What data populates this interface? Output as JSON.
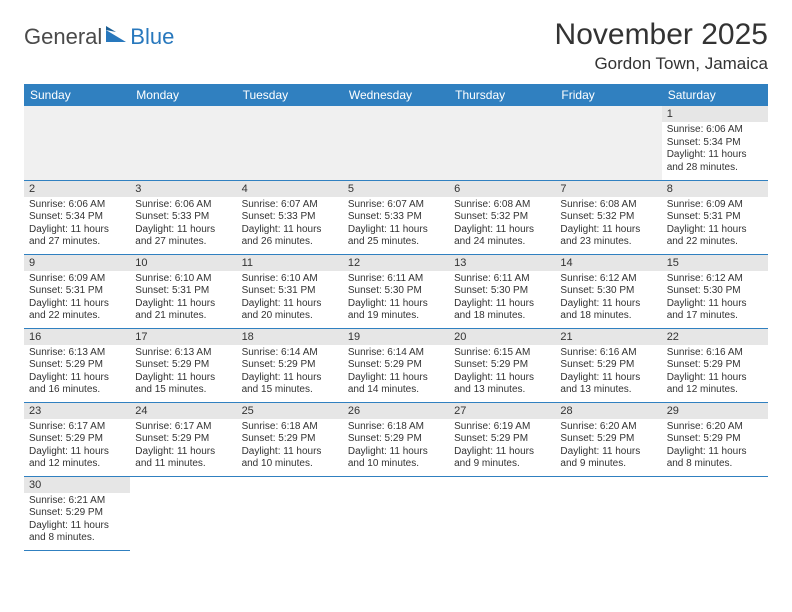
{
  "logo": {
    "main": "General",
    "sub": "Blue"
  },
  "title": "November 2025",
  "location": "Gordon Town, Jamaica",
  "colors": {
    "header_bg": "#3080c0",
    "header_text": "#ffffff",
    "daynum_bg": "#e6e6e6",
    "border": "#3080c0",
    "logo_gray": "#4a4a4a",
    "logo_blue": "#2878bd"
  },
  "weekdays": [
    "Sunday",
    "Monday",
    "Tuesday",
    "Wednesday",
    "Thursday",
    "Friday",
    "Saturday"
  ],
  "first_weekday_index": 6,
  "days": [
    {
      "n": 1,
      "sunrise": "6:06 AM",
      "sunset": "5:34 PM",
      "daylight": "11 hours and 28 minutes."
    },
    {
      "n": 2,
      "sunrise": "6:06 AM",
      "sunset": "5:34 PM",
      "daylight": "11 hours and 27 minutes."
    },
    {
      "n": 3,
      "sunrise": "6:06 AM",
      "sunset": "5:33 PM",
      "daylight": "11 hours and 27 minutes."
    },
    {
      "n": 4,
      "sunrise": "6:07 AM",
      "sunset": "5:33 PM",
      "daylight": "11 hours and 26 minutes."
    },
    {
      "n": 5,
      "sunrise": "6:07 AM",
      "sunset": "5:33 PM",
      "daylight": "11 hours and 25 minutes."
    },
    {
      "n": 6,
      "sunrise": "6:08 AM",
      "sunset": "5:32 PM",
      "daylight": "11 hours and 24 minutes."
    },
    {
      "n": 7,
      "sunrise": "6:08 AM",
      "sunset": "5:32 PM",
      "daylight": "11 hours and 23 minutes."
    },
    {
      "n": 8,
      "sunrise": "6:09 AM",
      "sunset": "5:31 PM",
      "daylight": "11 hours and 22 minutes."
    },
    {
      "n": 9,
      "sunrise": "6:09 AM",
      "sunset": "5:31 PM",
      "daylight": "11 hours and 22 minutes."
    },
    {
      "n": 10,
      "sunrise": "6:10 AM",
      "sunset": "5:31 PM",
      "daylight": "11 hours and 21 minutes."
    },
    {
      "n": 11,
      "sunrise": "6:10 AM",
      "sunset": "5:31 PM",
      "daylight": "11 hours and 20 minutes."
    },
    {
      "n": 12,
      "sunrise": "6:11 AM",
      "sunset": "5:30 PM",
      "daylight": "11 hours and 19 minutes."
    },
    {
      "n": 13,
      "sunrise": "6:11 AM",
      "sunset": "5:30 PM",
      "daylight": "11 hours and 18 minutes."
    },
    {
      "n": 14,
      "sunrise": "6:12 AM",
      "sunset": "5:30 PM",
      "daylight": "11 hours and 18 minutes."
    },
    {
      "n": 15,
      "sunrise": "6:12 AM",
      "sunset": "5:30 PM",
      "daylight": "11 hours and 17 minutes."
    },
    {
      "n": 16,
      "sunrise": "6:13 AM",
      "sunset": "5:29 PM",
      "daylight": "11 hours and 16 minutes."
    },
    {
      "n": 17,
      "sunrise": "6:13 AM",
      "sunset": "5:29 PM",
      "daylight": "11 hours and 15 minutes."
    },
    {
      "n": 18,
      "sunrise": "6:14 AM",
      "sunset": "5:29 PM",
      "daylight": "11 hours and 15 minutes."
    },
    {
      "n": 19,
      "sunrise": "6:14 AM",
      "sunset": "5:29 PM",
      "daylight": "11 hours and 14 minutes."
    },
    {
      "n": 20,
      "sunrise": "6:15 AM",
      "sunset": "5:29 PM",
      "daylight": "11 hours and 13 minutes."
    },
    {
      "n": 21,
      "sunrise": "6:16 AM",
      "sunset": "5:29 PM",
      "daylight": "11 hours and 13 minutes."
    },
    {
      "n": 22,
      "sunrise": "6:16 AM",
      "sunset": "5:29 PM",
      "daylight": "11 hours and 12 minutes."
    },
    {
      "n": 23,
      "sunrise": "6:17 AM",
      "sunset": "5:29 PM",
      "daylight": "11 hours and 12 minutes."
    },
    {
      "n": 24,
      "sunrise": "6:17 AM",
      "sunset": "5:29 PM",
      "daylight": "11 hours and 11 minutes."
    },
    {
      "n": 25,
      "sunrise": "6:18 AM",
      "sunset": "5:29 PM",
      "daylight": "11 hours and 10 minutes."
    },
    {
      "n": 26,
      "sunrise": "6:18 AM",
      "sunset": "5:29 PM",
      "daylight": "11 hours and 10 minutes."
    },
    {
      "n": 27,
      "sunrise": "6:19 AM",
      "sunset": "5:29 PM",
      "daylight": "11 hours and 9 minutes."
    },
    {
      "n": 28,
      "sunrise": "6:20 AM",
      "sunset": "5:29 PM",
      "daylight": "11 hours and 9 minutes."
    },
    {
      "n": 29,
      "sunrise": "6:20 AM",
      "sunset": "5:29 PM",
      "daylight": "11 hours and 8 minutes."
    },
    {
      "n": 30,
      "sunrise": "6:21 AM",
      "sunset": "5:29 PM",
      "daylight": "11 hours and 8 minutes."
    }
  ],
  "labels": {
    "sunrise": "Sunrise:",
    "sunset": "Sunset:",
    "daylight": "Daylight:"
  }
}
